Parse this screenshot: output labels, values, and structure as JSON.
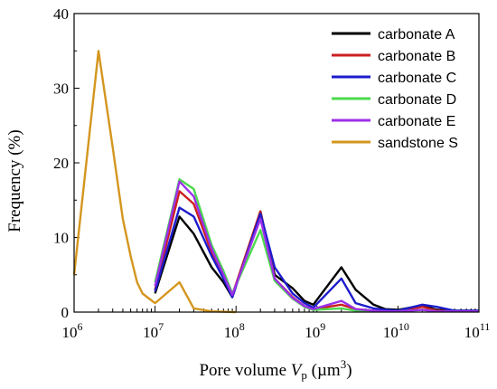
{
  "chart_data": {
    "type": "line",
    "title": "",
    "xlabel": {
      "main": "Pore volume ",
      "var": "V",
      "sub": "p",
      "unit_open": " (µm",
      "sup": "3",
      "unit_close": ")"
    },
    "ylabel": "Frequency (%)",
    "xscale": "log",
    "xlim": [
      1000000,
      100000000000
    ],
    "ylim": [
      0,
      40
    ],
    "yticks": [
      0,
      10,
      20,
      30,
      40
    ],
    "xticks": [
      {
        "value": 1000000,
        "base": "10",
        "exp": "6"
      },
      {
        "value": 10000000,
        "base": "10",
        "exp": "7"
      },
      {
        "value": 100000000,
        "base": "10",
        "exp": "8"
      },
      {
        "value": 1000000000,
        "base": "10",
        "exp": "9"
      },
      {
        "value": 10000000000,
        "base": "10",
        "exp": "10"
      },
      {
        "value": 100000000000,
        "base": "10",
        "exp": "11"
      }
    ],
    "grid": false,
    "legend_position": "top-right",
    "series": [
      {
        "name": "carbonate A",
        "color": "#000000",
        "x": [
          10000000,
          20000000,
          30000000,
          50000000,
          70000000,
          90000000,
          200000000,
          300000000,
          500000000,
          700000000,
          900000000,
          2000000000,
          3000000000,
          5000000000,
          7000000000,
          10000000000,
          20000000000,
          30000000000,
          50000000000,
          100000000000
        ],
        "y": [
          2.5,
          12.8,
          10.5,
          6.0,
          4.0,
          2.0,
          13.5,
          5.0,
          3.2,
          1.5,
          1.0,
          6.0,
          3.0,
          1.0,
          0.4,
          0.3,
          0.9,
          0.3,
          0.2,
          0.2
        ]
      },
      {
        "name": "carbonate B",
        "color": "#cc1f1f",
        "x": [
          10000000,
          20000000,
          30000000,
          50000000,
          70000000,
          90000000,
          200000000,
          300000000,
          500000000,
          700000000,
          900000000,
          2000000000,
          3000000000,
          5000000000,
          7000000000,
          10000000000,
          20000000000,
          30000000000,
          50000000000,
          100000000000
        ],
        "y": [
          3.0,
          16.2,
          14.5,
          8.0,
          5.0,
          2.3,
          13.5,
          4.5,
          2.0,
          0.8,
          0.4,
          1.0,
          0.4,
          0.2,
          0.1,
          0.1,
          0.7,
          0.2,
          0.1,
          0.1
        ]
      },
      {
        "name": "carbonate C",
        "color": "#1c1ccc",
        "x": [
          10000000,
          20000000,
          30000000,
          50000000,
          70000000,
          90000000,
          200000000,
          300000000,
          500000000,
          700000000,
          900000000,
          2000000000,
          3000000000,
          5000000000,
          7000000000,
          10000000000,
          20000000000,
          30000000000,
          50000000000,
          100000000000
        ],
        "y": [
          2.8,
          14.0,
          12.8,
          7.5,
          4.5,
          2.0,
          13.2,
          6.0,
          2.5,
          1.2,
          0.6,
          4.5,
          1.2,
          0.5,
          0.3,
          0.2,
          1.0,
          0.7,
          0.2,
          0.2
        ]
      },
      {
        "name": "carbonate D",
        "color": "#4cd94c",
        "x": [
          10000000,
          20000000,
          30000000,
          50000000,
          70000000,
          90000000,
          200000000,
          300000000,
          500000000,
          700000000,
          900000000,
          2000000000,
          3000000000,
          5000000000,
          7000000000,
          10000000000,
          20000000000,
          30000000000,
          50000000000,
          100000000000
        ],
        "y": [
          4.0,
          17.8,
          16.5,
          9.0,
          5.5,
          2.5,
          11.0,
          4.2,
          1.8,
          0.7,
          0.3,
          0.5,
          0.2,
          0.1,
          0.1,
          0.1,
          0.3,
          0.1,
          0.1,
          0.1
        ]
      },
      {
        "name": "carbonate E",
        "color": "#9b30e8",
        "x": [
          10000000,
          20000000,
          30000000,
          50000000,
          70000000,
          90000000,
          200000000,
          300000000,
          500000000,
          700000000,
          900000000,
          2000000000,
          3000000000,
          5000000000,
          7000000000,
          10000000000,
          20000000000,
          30000000000,
          50000000000,
          100000000000
        ],
        "y": [
          3.5,
          17.5,
          15.5,
          8.5,
          5.0,
          2.3,
          12.5,
          4.5,
          1.9,
          0.8,
          0.4,
          1.5,
          0.4,
          0.2,
          0.1,
          0.1,
          0.3,
          0.1,
          0.1,
          0.1
        ]
      },
      {
        "name": "sandstone S",
        "color": "#d4961e",
        "x": [
          1000000,
          2000000,
          3000000,
          4000000,
          5000000,
          6000000,
          7000000,
          8000000,
          10000000,
          20000000,
          30000000,
          50000000,
          100000000
        ],
        "y": [
          5.0,
          35.0,
          22.0,
          12.5,
          7.5,
          4.0,
          2.5,
          2.0,
          1.2,
          4.0,
          0.5,
          0.1,
          0.0
        ]
      }
    ]
  }
}
